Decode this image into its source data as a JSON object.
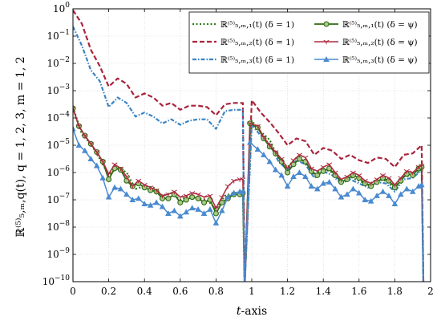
{
  "chart_data": {
    "type": "line",
    "x_label_var": "t",
    "x_label_rest": "-axis",
    "y_label": "ℝ⁽⁵⁾₅,ₘ,q(t),  q = 1, 2, 3,  m = 1, 2",
    "y_scale": "log",
    "xlim": [
      0,
      2
    ],
    "ylim_exponent": [
      -10,
      0
    ],
    "x_ticks": [
      "0",
      "0.2",
      "0.4",
      "0.6",
      "0.8",
      "1",
      "1.2",
      "1.4",
      "1.6",
      "1.8",
      "2"
    ],
    "x_tick_values": [
      0,
      0.2,
      0.4,
      0.6,
      0.8,
      1,
      1.2,
      1.4,
      1.6,
      1.8,
      2
    ],
    "y_tick_base": "10",
    "y_tick_exponents": [
      "0",
      "−1",
      "−2",
      "−3",
      "−4",
      "−5",
      "−6",
      "−7",
      "−8",
      "−9",
      "−10"
    ],
    "y_tick_values": [
      0,
      -1,
      -2,
      -3,
      -4,
      -5,
      -6,
      -7,
      -8,
      -9,
      -10
    ],
    "legend_position": "top-right",
    "grid": true,
    "series": [
      {
        "name": "ℝ⁽⁵⁾₅,ₘ,₁(t)  (δ = 1)",
        "color": "#2e7d16",
        "dash": "2,2.5",
        "width": 2.2,
        "marker": "none",
        "x": [
          0,
          0.05,
          0.1,
          0.15,
          0.2,
          0.25,
          0.3,
          0.35,
          0.4,
          0.45,
          0.5,
          0.55,
          0.6,
          0.65,
          0.7,
          0.75,
          0.8,
          0.85,
          0.9,
          0.95,
          0.96,
          1,
          1.05,
          1.1,
          1.15,
          1.2,
          1.25,
          1.3,
          1.35,
          1.4,
          1.45,
          1.5,
          1.55,
          1.6,
          1.65,
          1.7,
          1.75,
          1.8,
          1.85,
          1.9,
          1.95,
          1.96
        ],
        "y_exp": [
          -3.6,
          -4.6,
          -4.95,
          -5.5,
          -6.1,
          -5.8,
          -6.0,
          -6.6,
          -6.5,
          -6.55,
          -6.85,
          -6.75,
          -7.0,
          -6.85,
          -6.95,
          -7.0,
          -7.35,
          -6.85,
          -6.75,
          -6.75,
          -10.2,
          -4.1,
          -4.5,
          -4.8,
          -5.5,
          -5.8,
          -5.45,
          -5.6,
          -6.1,
          -5.85,
          -6.0,
          -6.3,
          -6.15,
          -6.3,
          -6.45,
          -6.25,
          -6.3,
          -6.6,
          -6.15,
          -6.1,
          -5.9,
          -10.2
        ]
      },
      {
        "name": "ℝ⁽⁵⁾₅,ₘ,₂(t)  (δ = 1)",
        "color": "#a8243d",
        "dash": "6,3",
        "width": 2.2,
        "marker": "none",
        "x": [
          0,
          0.05,
          0.1,
          0.15,
          0.2,
          0.25,
          0.3,
          0.35,
          0.4,
          0.45,
          0.5,
          0.55,
          0.6,
          0.65,
          0.7,
          0.75,
          0.8,
          0.85,
          0.9,
          0.95,
          0.96,
          1,
          1.05,
          1.1,
          1.15,
          1.2,
          1.25,
          1.3,
          1.35,
          1.4,
          1.45,
          1.5,
          1.55,
          1.6,
          1.65,
          1.7,
          1.75,
          1.8,
          1.85,
          1.9,
          1.95,
          1.96
        ],
        "y_exp": [
          -0.05,
          -0.55,
          -1.5,
          -2.1,
          -2.85,
          -2.55,
          -2.75,
          -3.25,
          -3.1,
          -3.25,
          -3.55,
          -3.45,
          -3.7,
          -3.55,
          -3.55,
          -3.6,
          -3.9,
          -3.5,
          -3.45,
          -3.45,
          -10.2,
          -3.35,
          -3.8,
          -4.15,
          -4.55,
          -5.0,
          -4.75,
          -4.85,
          -5.35,
          -5.1,
          -5.2,
          -5.5,
          -5.35,
          -5.55,
          -5.65,
          -5.45,
          -5.5,
          -5.8,
          -5.35,
          -5.3,
          -5.0,
          -10.2
        ]
      },
      {
        "name": "ℝ⁽⁵⁾₅,ₘ,₃(t)  (δ = 1)",
        "color": "#3b84c4",
        "dash": "5,2,1.5,2",
        "width": 2.2,
        "marker": "none",
        "x": [
          0,
          0.05,
          0.1,
          0.15,
          0.2,
          0.25,
          0.3,
          0.35,
          0.4,
          0.45,
          0.5,
          0.55,
          0.6,
          0.65,
          0.7,
          0.75,
          0.8,
          0.85,
          0.9,
          0.95,
          0.96,
          1,
          1.05,
          1.1,
          1.15,
          1.2,
          1.25,
          1.3,
          1.35,
          1.4,
          1.45,
          1.5,
          1.55,
          1.6,
          1.65,
          1.7,
          1.75,
          1.8,
          1.85,
          1.9,
          1.95,
          1.96
        ],
        "y_exp": [
          -0.65,
          -1.35,
          -2.25,
          -2.65,
          -3.6,
          -3.25,
          -3.45,
          -3.95,
          -3.8,
          -3.95,
          -4.2,
          -4.05,
          -4.25,
          -4.1,
          -4.05,
          -4.05,
          -4.4,
          -3.75,
          -3.7,
          -3.7,
          -10.2,
          -4.25,
          -4.65,
          -4.95,
          -5.6,
          -5.9,
          -5.55,
          -5.7,
          -6.2,
          -5.95,
          -6.1,
          -6.4,
          -6.25,
          -6.4,
          -6.55,
          -6.35,
          -6.4,
          -6.7,
          -6.25,
          -6.2,
          -5.9,
          -10.2
        ]
      },
      {
        "name": "ℝ⁽⁵⁾₅,ₘ,₁(t)  (δ = ψ)",
        "color": "#2e6a12",
        "dash": "",
        "width": 1.8,
        "marker": "circle",
        "x": [
          0,
          0.0333,
          0.0667,
          0.1,
          0.1333,
          0.1667,
          0.2,
          0.2333,
          0.2667,
          0.3,
          0.3333,
          0.3667,
          0.4,
          0.4333,
          0.4667,
          0.5,
          0.5333,
          0.5667,
          0.6,
          0.6333,
          0.6667,
          0.7,
          0.7333,
          0.7667,
          0.8,
          0.8333,
          0.8667,
          0.9,
          0.9333,
          0.95,
          0.96,
          0.99,
          1.0333,
          1.0667,
          1.1,
          1.1333,
          1.1667,
          1.2,
          1.2333,
          1.2667,
          1.3,
          1.3333,
          1.3667,
          1.4,
          1.4333,
          1.4667,
          1.5,
          1.5333,
          1.5667,
          1.6,
          1.6333,
          1.6667,
          1.7,
          1.7333,
          1.7667,
          1.8,
          1.8333,
          1.8667,
          1.9,
          1.9333,
          1.95,
          1.96
        ],
        "y_exp": [
          -3.65,
          -4.3,
          -4.65,
          -4.95,
          -5.25,
          -5.6,
          -6.25,
          -5.85,
          -5.9,
          -6.3,
          -6.5,
          -6.4,
          -6.55,
          -6.65,
          -6.7,
          -6.95,
          -6.95,
          -6.8,
          -7.1,
          -7.0,
          -6.9,
          -6.95,
          -7.1,
          -7.0,
          -7.5,
          -7.1,
          -6.95,
          -6.8,
          -6.8,
          -6.75,
          -10.2,
          -4.2,
          -4.35,
          -4.75,
          -5.05,
          -5.3,
          -5.6,
          -6.0,
          -5.7,
          -5.5,
          -5.6,
          -5.95,
          -6.1,
          -5.95,
          -5.85,
          -6.1,
          -6.35,
          -6.25,
          -6.1,
          -6.2,
          -6.4,
          -6.5,
          -6.35,
          -6.2,
          -6.3,
          -6.55,
          -6.3,
          -6.05,
          -6.1,
          -5.85,
          -5.8,
          -10.2
        ]
      },
      {
        "name": "ℝ⁽⁵⁾₅,ₘ,₂(t)  (δ = ψ)",
        "color": "#b02a40",
        "dash": "",
        "width": 1.5,
        "marker": "tri-down",
        "x": [
          0,
          0.0333,
          0.0667,
          0.1,
          0.1333,
          0.1667,
          0.2,
          0.2333,
          0.2667,
          0.3,
          0.3333,
          0.3667,
          0.4,
          0.4333,
          0.4667,
          0.5,
          0.5333,
          0.5667,
          0.6,
          0.6333,
          0.6667,
          0.7,
          0.7333,
          0.7667,
          0.8,
          0.8333,
          0.8667,
          0.9,
          0.9333,
          0.95,
          0.96,
          0.99,
          1.0333,
          1.0667,
          1.1,
          1.1333,
          1.1667,
          1.2,
          1.2333,
          1.2667,
          1.3,
          1.3333,
          1.3667,
          1.4,
          1.4333,
          1.4667,
          1.5,
          1.5333,
          1.5667,
          1.6,
          1.6333,
          1.6667,
          1.7,
          1.7333,
          1.7667,
          1.8,
          1.8333,
          1.8667,
          1.9,
          1.9333,
          1.95,
          1.96
        ],
        "y_exp": [
          -3.65,
          -4.3,
          -4.65,
          -4.95,
          -5.25,
          -5.6,
          -6.05,
          -5.7,
          -5.85,
          -6.15,
          -6.5,
          -6.3,
          -6.45,
          -6.55,
          -6.65,
          -6.85,
          -6.8,
          -6.7,
          -6.9,
          -6.85,
          -6.75,
          -6.8,
          -6.9,
          -6.85,
          -7.3,
          -6.9,
          -6.5,
          -6.3,
          -6.25,
          -6.25,
          -10.2,
          -4.2,
          -4.3,
          -4.7,
          -5.0,
          -5.25,
          -5.5,
          -5.85,
          -5.55,
          -5.35,
          -5.45,
          -5.85,
          -5.95,
          -5.8,
          -5.7,
          -6.0,
          -6.25,
          -6.15,
          -6.0,
          -6.1,
          -6.3,
          -6.4,
          -6.25,
          -6.1,
          -6.2,
          -6.45,
          -6.2,
          -5.95,
          -6.0,
          -5.8,
          -5.75,
          -10.2
        ]
      },
      {
        "name": "ℝ⁽⁵⁾₅,ₘ,₃(t)  (δ = ψ)",
        "color": "#4a8ad0",
        "dash": "",
        "width": 1.5,
        "marker": "tri-up",
        "x": [
          0,
          0.0333,
          0.0667,
          0.1,
          0.1333,
          0.1667,
          0.2,
          0.2333,
          0.2667,
          0.3,
          0.3333,
          0.3667,
          0.4,
          0.4333,
          0.4667,
          0.5,
          0.5333,
          0.5667,
          0.6,
          0.6333,
          0.6667,
          0.7,
          0.7333,
          0.7667,
          0.8,
          0.8333,
          0.8667,
          0.9,
          0.9333,
          0.95,
          0.96,
          0.99,
          1.0333,
          1.0667,
          1.1,
          1.1333,
          1.1667,
          1.2,
          1.2333,
          1.2667,
          1.3,
          1.3333,
          1.3667,
          1.4,
          1.4333,
          1.4667,
          1.5,
          1.5333,
          1.5667,
          1.6,
          1.6333,
          1.6667,
          1.7,
          1.7333,
          1.7667,
          1.8,
          1.8333,
          1.8667,
          1.9,
          1.9333,
          1.95,
          1.96
        ],
        "y_exp": [
          -4.4,
          -5.0,
          -5.2,
          -5.5,
          -5.75,
          -6.2,
          -6.9,
          -6.55,
          -6.6,
          -6.8,
          -7.0,
          -6.95,
          -7.15,
          -7.2,
          -7.1,
          -7.25,
          -7.5,
          -7.4,
          -7.6,
          -7.45,
          -7.3,
          -7.35,
          -7.5,
          -7.35,
          -7.85,
          -7.4,
          -6.9,
          -6.75,
          -6.7,
          -6.7,
          -10.2,
          -4.9,
          -5.15,
          -5.35,
          -5.6,
          -5.9,
          -6.1,
          -6.5,
          -6.15,
          -6.0,
          -6.15,
          -6.5,
          -6.6,
          -6.4,
          -6.35,
          -6.6,
          -6.9,
          -6.8,
          -6.6,
          -6.75,
          -7.0,
          -7.05,
          -6.85,
          -6.7,
          -6.85,
          -7.15,
          -6.8,
          -6.6,
          -6.7,
          -6.5,
          -6.45,
          -10.2
        ]
      }
    ]
  }
}
